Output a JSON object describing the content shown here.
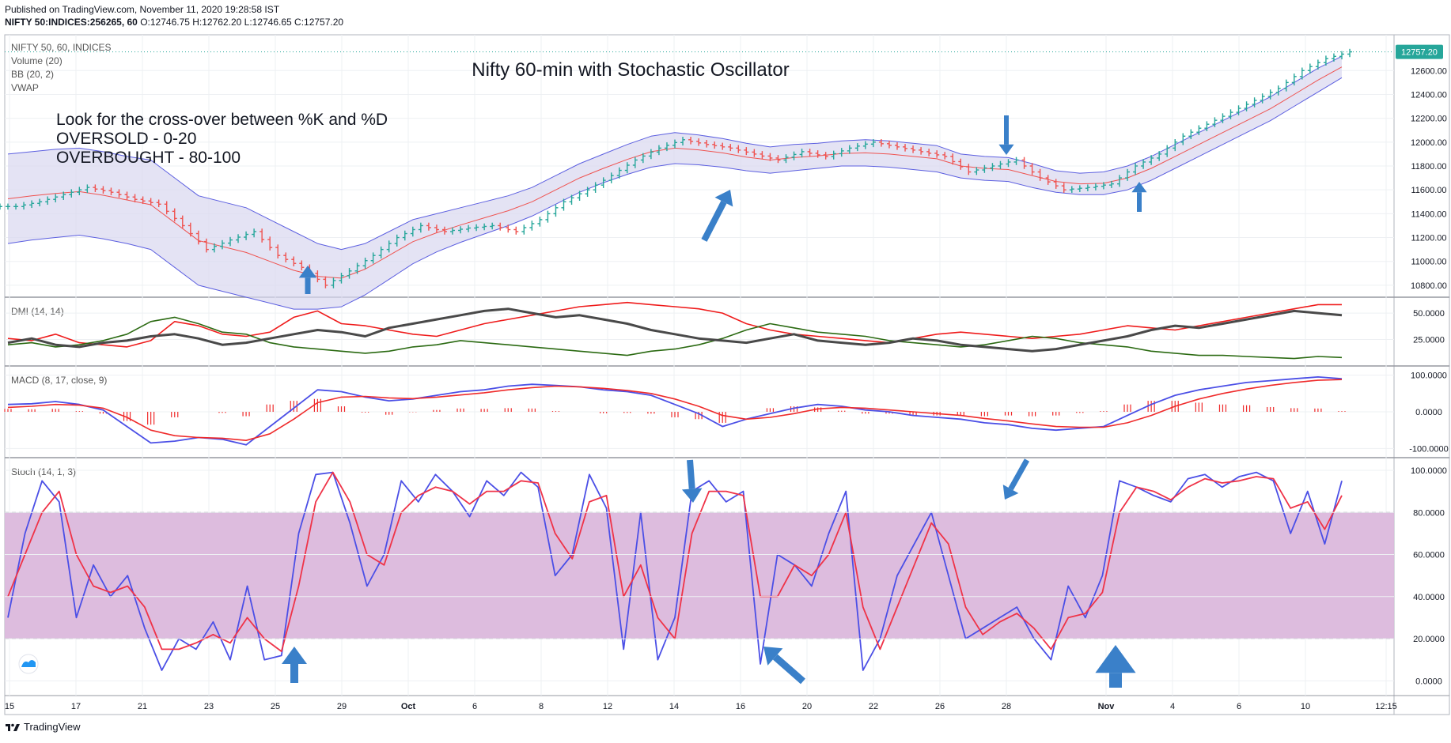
{
  "header": {
    "published": "Published on TradingView.com, November 11, 2020 19:28:58 IST",
    "symbol": "NIFTY 50:INDICES:256265, 60",
    "ohlc": "O:12746.75 H:12762.20 L:12746.65 C:12757.20"
  },
  "legend": {
    "main": [
      "NIFTY 50, 60, INDICES",
      "Volume (20)",
      "BB (20, 2)",
      "VWAP"
    ],
    "dmi": "DMI (14, 14)",
    "macd": "MACD (8, 17, close, 9)",
    "stoch": "Stoch (14, 1, 3)"
  },
  "annotations": {
    "title": "Nifty 60-min with Stochastic Oscillator",
    "lines": [
      "Look for the cross-over between %K and %D",
      "OVERSOLD - 0-20",
      "OVERBOUGHT - 80-100"
    ]
  },
  "price_label": "12757.20",
  "footer": {
    "brand": "TradingView"
  },
  "colors": {
    "up": "#26a69a",
    "down": "#ef5350",
    "bb_fill": "#d9d7ef",
    "bb_line": "#5c5fe0",
    "stoch_band": "#dbb8dc",
    "k_line": "#4b4fe6",
    "d_line": "#ef3348"
  },
  "chart_data": [
    {
      "type": "line",
      "panel": "price",
      "y_ticks": [
        "12600.00",
        "12400.00",
        "12200.00",
        "12000.00",
        "11800.00",
        "11600.00",
        "11400.00",
        "11200.00",
        "11000.00",
        "10800.00"
      ],
      "ylim": [
        10700,
        12900
      ],
      "x_ticks": [
        "15",
        "17",
        "21",
        "23",
        "25",
        "29",
        "Oct",
        "6",
        "8",
        "12",
        "14",
        "16",
        "20",
        "22",
        "26",
        "28",
        "Nov",
        "4",
        "6",
        "10",
        "12:15"
      ],
      "series": [
        {
          "values": [
            11460,
            11500,
            11560,
            11620,
            11580,
            11520,
            11480,
            11300,
            11100,
            11180,
            11250,
            11050,
            10950,
            10800,
            10920,
            11050,
            11200,
            11300,
            11250,
            11280,
            11300,
            11250,
            11350,
            11500,
            11600,
            11720,
            11850,
            11950,
            12020,
            11980,
            11950,
            11900,
            11850,
            11920,
            11880,
            11950,
            12000,
            11960,
            11920,
            11880,
            11750,
            11800,
            11850,
            11700,
            11600,
            11620,
            11650,
            11800,
            11900,
            12050,
            12150,
            12250,
            12350,
            12450,
            12600,
            12700,
            12757
          ]
        },
        {
          "values": [
            11900,
            11920,
            11940,
            11950,
            11920,
            11880,
            11850,
            11700,
            11550,
            11500,
            11450,
            11350,
            11250,
            11150,
            11100,
            11150,
            11250,
            11350,
            11400,
            11450,
            11500,
            11550,
            11620,
            11720,
            11820,
            11900,
            11980,
            12050,
            12080,
            12060,
            12030,
            11990,
            11960,
            11980,
            11990,
            12010,
            12020,
            12010,
            11990,
            11970,
            11900,
            11880,
            11870,
            11820,
            11760,
            11740,
            11750,
            11800,
            11880,
            11980,
            12080,
            12180,
            12280,
            12380,
            12500,
            12620,
            12720
          ]
        },
        {
          "values": [
            11150,
            11180,
            11200,
            11220,
            11190,
            11150,
            11100,
            10950,
            10800,
            10750,
            10700,
            10650,
            10600,
            10600,
            10620,
            10720,
            10850,
            10980,
            11080,
            11160,
            11230,
            11300,
            11380,
            11480,
            11580,
            11660,
            11730,
            11790,
            11820,
            11810,
            11790,
            11760,
            11740,
            11760,
            11780,
            11800,
            11800,
            11790,
            11770,
            11750,
            11700,
            11680,
            11670,
            11620,
            11580,
            11560,
            11560,
            11600,
            11680,
            11780,
            11880,
            11980,
            12080,
            12180,
            12300,
            12420,
            12540
          ]
        }
      ]
    },
    {
      "type": "line",
      "panel": "dmi",
      "y_ticks": [
        "50.0000",
        "25.0000"
      ],
      "ylim": [
        0,
        65
      ],
      "series": [
        {
          "values": [
            26,
            24,
            30,
            22,
            20,
            18,
            24,
            42,
            38,
            30,
            28,
            32,
            46,
            52,
            40,
            38,
            34,
            30,
            28,
            34,
            40,
            44,
            48,
            52,
            56,
            58,
            60,
            58,
            56,
            54,
            50,
            40,
            34,
            30,
            28,
            26,
            24,
            22,
            26,
            30,
            32,
            30,
            28,
            26,
            28,
            30,
            34,
            38,
            36,
            34,
            38,
            42,
            46,
            50,
            54,
            58,
            58
          ]
        },
        {
          "values": [
            20,
            22,
            18,
            20,
            24,
            30,
            42,
            46,
            40,
            32,
            30,
            22,
            18,
            16,
            14,
            12,
            14,
            18,
            20,
            24,
            22,
            20,
            18,
            16,
            14,
            12,
            10,
            14,
            16,
            20,
            26,
            34,
            40,
            36,
            32,
            30,
            28,
            24,
            22,
            20,
            18,
            20,
            24,
            28,
            26,
            22,
            20,
            18,
            14,
            12,
            10,
            10,
            9,
            8,
            7,
            9,
            8
          ]
        },
        {
          "values": [
            22,
            26,
            20,
            18,
            22,
            24,
            28,
            30,
            26,
            20,
            22,
            26,
            30,
            34,
            32,
            28,
            36,
            40,
            44,
            48,
            52,
            54,
            50,
            46,
            48,
            44,
            40,
            34,
            30,
            26,
            24,
            22,
            26,
            30,
            24,
            22,
            20,
            22,
            26,
            24,
            20,
            18,
            16,
            14,
            16,
            20,
            24,
            28,
            34,
            38,
            36,
            40,
            44,
            48,
            52,
            50,
            48
          ]
        }
      ]
    },
    {
      "type": "line",
      "panel": "macd",
      "y_ticks": [
        "100.0000",
        "0.0000",
        "-100.0000"
      ],
      "ylim": [
        -125,
        125
      ],
      "series": [
        {
          "values": [
            20,
            22,
            28,
            20,
            5,
            -40,
            -85,
            -80,
            -70,
            -75,
            -90,
            -40,
            10,
            60,
            55,
            40,
            30,
            35,
            45,
            55,
            60,
            70,
            75,
            72,
            68,
            60,
            55,
            45,
            20,
            -5,
            -40,
            -20,
            -5,
            10,
            20,
            15,
            5,
            0,
            -10,
            -15,
            -20,
            -30,
            -35,
            -45,
            -50,
            -45,
            -40,
            -10,
            20,
            45,
            60,
            70,
            80,
            85,
            90,
            95,
            90
          ]
        },
        {
          "values": [
            12,
            15,
            20,
            18,
            10,
            -15,
            -50,
            -65,
            -70,
            -72,
            -78,
            -60,
            -20,
            25,
            40,
            42,
            38,
            36,
            40,
            46,
            52,
            60,
            66,
            70,
            68,
            64,
            58,
            50,
            35,
            15,
            -10,
            -20,
            -15,
            -5,
            8,
            12,
            10,
            5,
            0,
            -5,
            -10,
            -18,
            -25,
            -33,
            -40,
            -42,
            -42,
            -30,
            -10,
            15,
            35,
            50,
            62,
            72,
            80,
            86,
            88
          ]
        }
      ],
      "histogram": [
        8,
        7,
        8,
        2,
        -5,
        -25,
        -35,
        -15,
        0,
        -3,
        -12,
        20,
        30,
        35,
        15,
        -2,
        -8,
        -1,
        5,
        9,
        8,
        10,
        9,
        2,
        0,
        -4,
        -3,
        -5,
        -15,
        -20,
        -30,
        0,
        10,
        15,
        12,
        3,
        -5,
        -5,
        -10,
        -10,
        -10,
        -12,
        -10,
        -12,
        -10,
        -3,
        2,
        20,
        30,
        30,
        25,
        20,
        18,
        13,
        10,
        9,
        2
      ]
    },
    {
      "type": "line",
      "panel": "stoch",
      "y_ticks": [
        "100.0000",
        "80.0000",
        "60.0000",
        "40.0000",
        "20.0000",
        "0.0000"
      ],
      "ylim": [
        -7,
        106
      ],
      "bands": [
        20,
        80
      ],
      "series": [
        {
          "values": [
            30,
            70,
            95,
            85,
            30,
            55,
            40,
            50,
            25,
            5,
            20,
            15,
            28,
            10,
            45,
            10,
            12,
            70,
            98,
            99,
            75,
            45,
            60,
            95,
            85,
            98,
            90,
            78,
            95,
            88,
            99,
            92,
            50,
            60,
            98,
            82,
            15,
            80,
            10,
            30,
            90,
            95,
            85,
            90,
            8,
            60,
            55,
            45,
            70,
            90,
            5,
            20,
            50,
            65,
            80,
            50,
            20,
            25,
            30,
            35,
            20,
            10,
            45,
            30,
            50,
            95,
            92,
            88,
            85,
            96,
            98,
            92,
            97,
            99,
            95,
            70,
            90,
            65,
            95
          ]
        },
        {
          "values": [
            40,
            60,
            80,
            90,
            60,
            45,
            42,
            45,
            35,
            15,
            15,
            18,
            22,
            18,
            30,
            20,
            14,
            45,
            85,
            99,
            85,
            60,
            55,
            80,
            88,
            92,
            90,
            84,
            90,
            90,
            95,
            94,
            70,
            58,
            85,
            88,
            40,
            55,
            30,
            20,
            70,
            90,
            90,
            88,
            40,
            40,
            55,
            50,
            60,
            80,
            35,
            15,
            35,
            55,
            75,
            65,
            35,
            22,
            28,
            32,
            25,
            15,
            30,
            32,
            42,
            80,
            92,
            90,
            86,
            92,
            96,
            94,
            95,
            97,
            96,
            82,
            85,
            72,
            88
          ]
        }
      ]
    }
  ]
}
